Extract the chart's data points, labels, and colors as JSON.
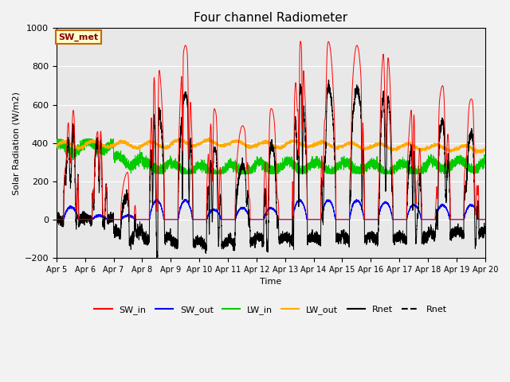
{
  "title": "Four channel Radiometer",
  "ylabel": "Solar Radiation (W/m2)",
  "xlabel": "Time",
  "xlim_days": [
    5,
    20
  ],
  "ylim": [
    -200,
    1000
  ],
  "yticks": [
    -200,
    0,
    200,
    400,
    600,
    800,
    1000
  ],
  "x_tick_labels": [
    "Apr 5",
    "Apr 6",
    "Apr 7",
    "Apr 8",
    "Apr 9",
    "Apr 10",
    "Apr 11",
    "Apr 12",
    "Apr 13",
    "Apr 14",
    "Apr 15",
    "Apr 16",
    "Apr 17",
    "Apr 18",
    "Apr 19",
    "Apr 20"
  ],
  "annotation_text": "SW_met",
  "annotation_bg": "#ffffcc",
  "annotation_border": "#cc6600",
  "colors": {
    "SW_in": "#ff0000",
    "SW_out": "#0000ff",
    "LW_in": "#00cc00",
    "LW_out": "#ffaa00",
    "Rnet": "#000000"
  },
  "legend_labels": [
    "SW_in",
    "SW_out",
    "LW_in",
    "LW_out",
    "Rnet",
    "Rnet"
  ],
  "plot_bg_color": "#e8e8e8",
  "fig_bg_color": "#f2f2f2",
  "grid_color": "#ffffff",
  "figsize": [
    6.4,
    4.8
  ],
  "dpi": 100
}
